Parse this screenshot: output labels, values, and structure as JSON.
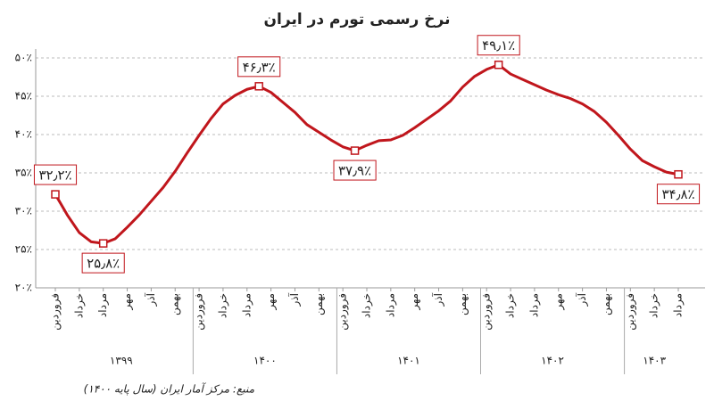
{
  "chart_data": {
    "type": "line",
    "title": "نرخ رسمی تورم در ایران",
    "source": "منبع: مرکز آمار ایران (سال پایه ۱۴۰۰)",
    "categories": [
      "فروردین",
      null,
      "خرداد",
      null,
      "مرداد",
      null,
      "مهر",
      null,
      "آذر",
      null,
      "بهمن",
      null,
      "فروردین",
      null,
      "خرداد",
      null,
      "مرداد",
      null,
      "مهر",
      null,
      "آذر",
      null,
      "بهمن",
      null,
      "فروردین",
      null,
      "خرداد",
      null,
      "مرداد",
      null,
      "مهر",
      null,
      "آذر",
      null,
      "بهمن",
      null,
      "فروردین",
      null,
      "خرداد",
      null,
      "مرداد",
      null,
      "مهر",
      null,
      "آذر",
      null,
      "بهمن",
      null,
      "فروردین",
      null,
      "خرداد",
      null,
      "مرداد"
    ],
    "x_groups": [
      "۱۳۹۹",
      "۱۴۰۰",
      "۱۴۰۱",
      "۱۴۰۲",
      "۱۴۰۳"
    ],
    "series": [
      {
        "name": "نرخ تورم",
        "color": "#c0161c",
        "values": [
          32.2,
          29.5,
          27.2,
          26.0,
          25.8,
          26.4,
          27.9,
          29.5,
          31.3,
          33.1,
          35.2,
          37.6,
          39.9,
          42.1,
          44.0,
          45.1,
          45.9,
          46.3,
          45.5,
          44.2,
          42.9,
          41.3,
          40.3,
          39.3,
          38.4,
          37.9,
          38.6,
          39.2,
          39.3,
          39.9,
          40.9,
          42.0,
          43.1,
          44.4,
          46.2,
          47.6,
          48.5,
          49.1,
          47.9,
          47.2,
          46.5,
          45.8,
          45.2,
          44.7,
          44.0,
          43.0,
          41.6,
          39.9,
          38.1,
          36.6,
          35.8,
          35.1,
          34.8
        ],
        "value_labels": [
          "۳۲٫۲٪",
          null,
          null,
          null,
          "۲۵٫۸٪",
          null,
          null,
          null,
          null,
          null,
          null,
          null,
          null,
          null,
          null,
          null,
          null,
          "۴۶٫۳٪",
          null,
          null,
          null,
          null,
          null,
          null,
          null,
          "۳۷٫۹٪",
          null,
          null,
          null,
          null,
          null,
          null,
          null,
          null,
          null,
          null,
          null,
          "۴۹٫۱٪",
          null,
          null,
          null,
          null,
          null,
          null,
          null,
          null,
          null,
          null,
          null,
          null,
          null,
          null,
          "۳۴٫۸٪"
        ]
      }
    ],
    "ylim": [
      20,
      50
    ],
    "yticks": [
      {
        "value": 20,
        "label": "۲۰٪"
      },
      {
        "value": 25,
        "label": "۲۵٪"
      },
      {
        "value": 30,
        "label": "۳۰٪"
      },
      {
        "value": 35,
        "label": "۳۵٪"
      },
      {
        "value": 40,
        "label": "۴۰٪"
      },
      {
        "value": 45,
        "label": "۴۵٪"
      },
      {
        "value": 50,
        "label": "۵۰٪"
      }
    ],
    "grid": true
  }
}
